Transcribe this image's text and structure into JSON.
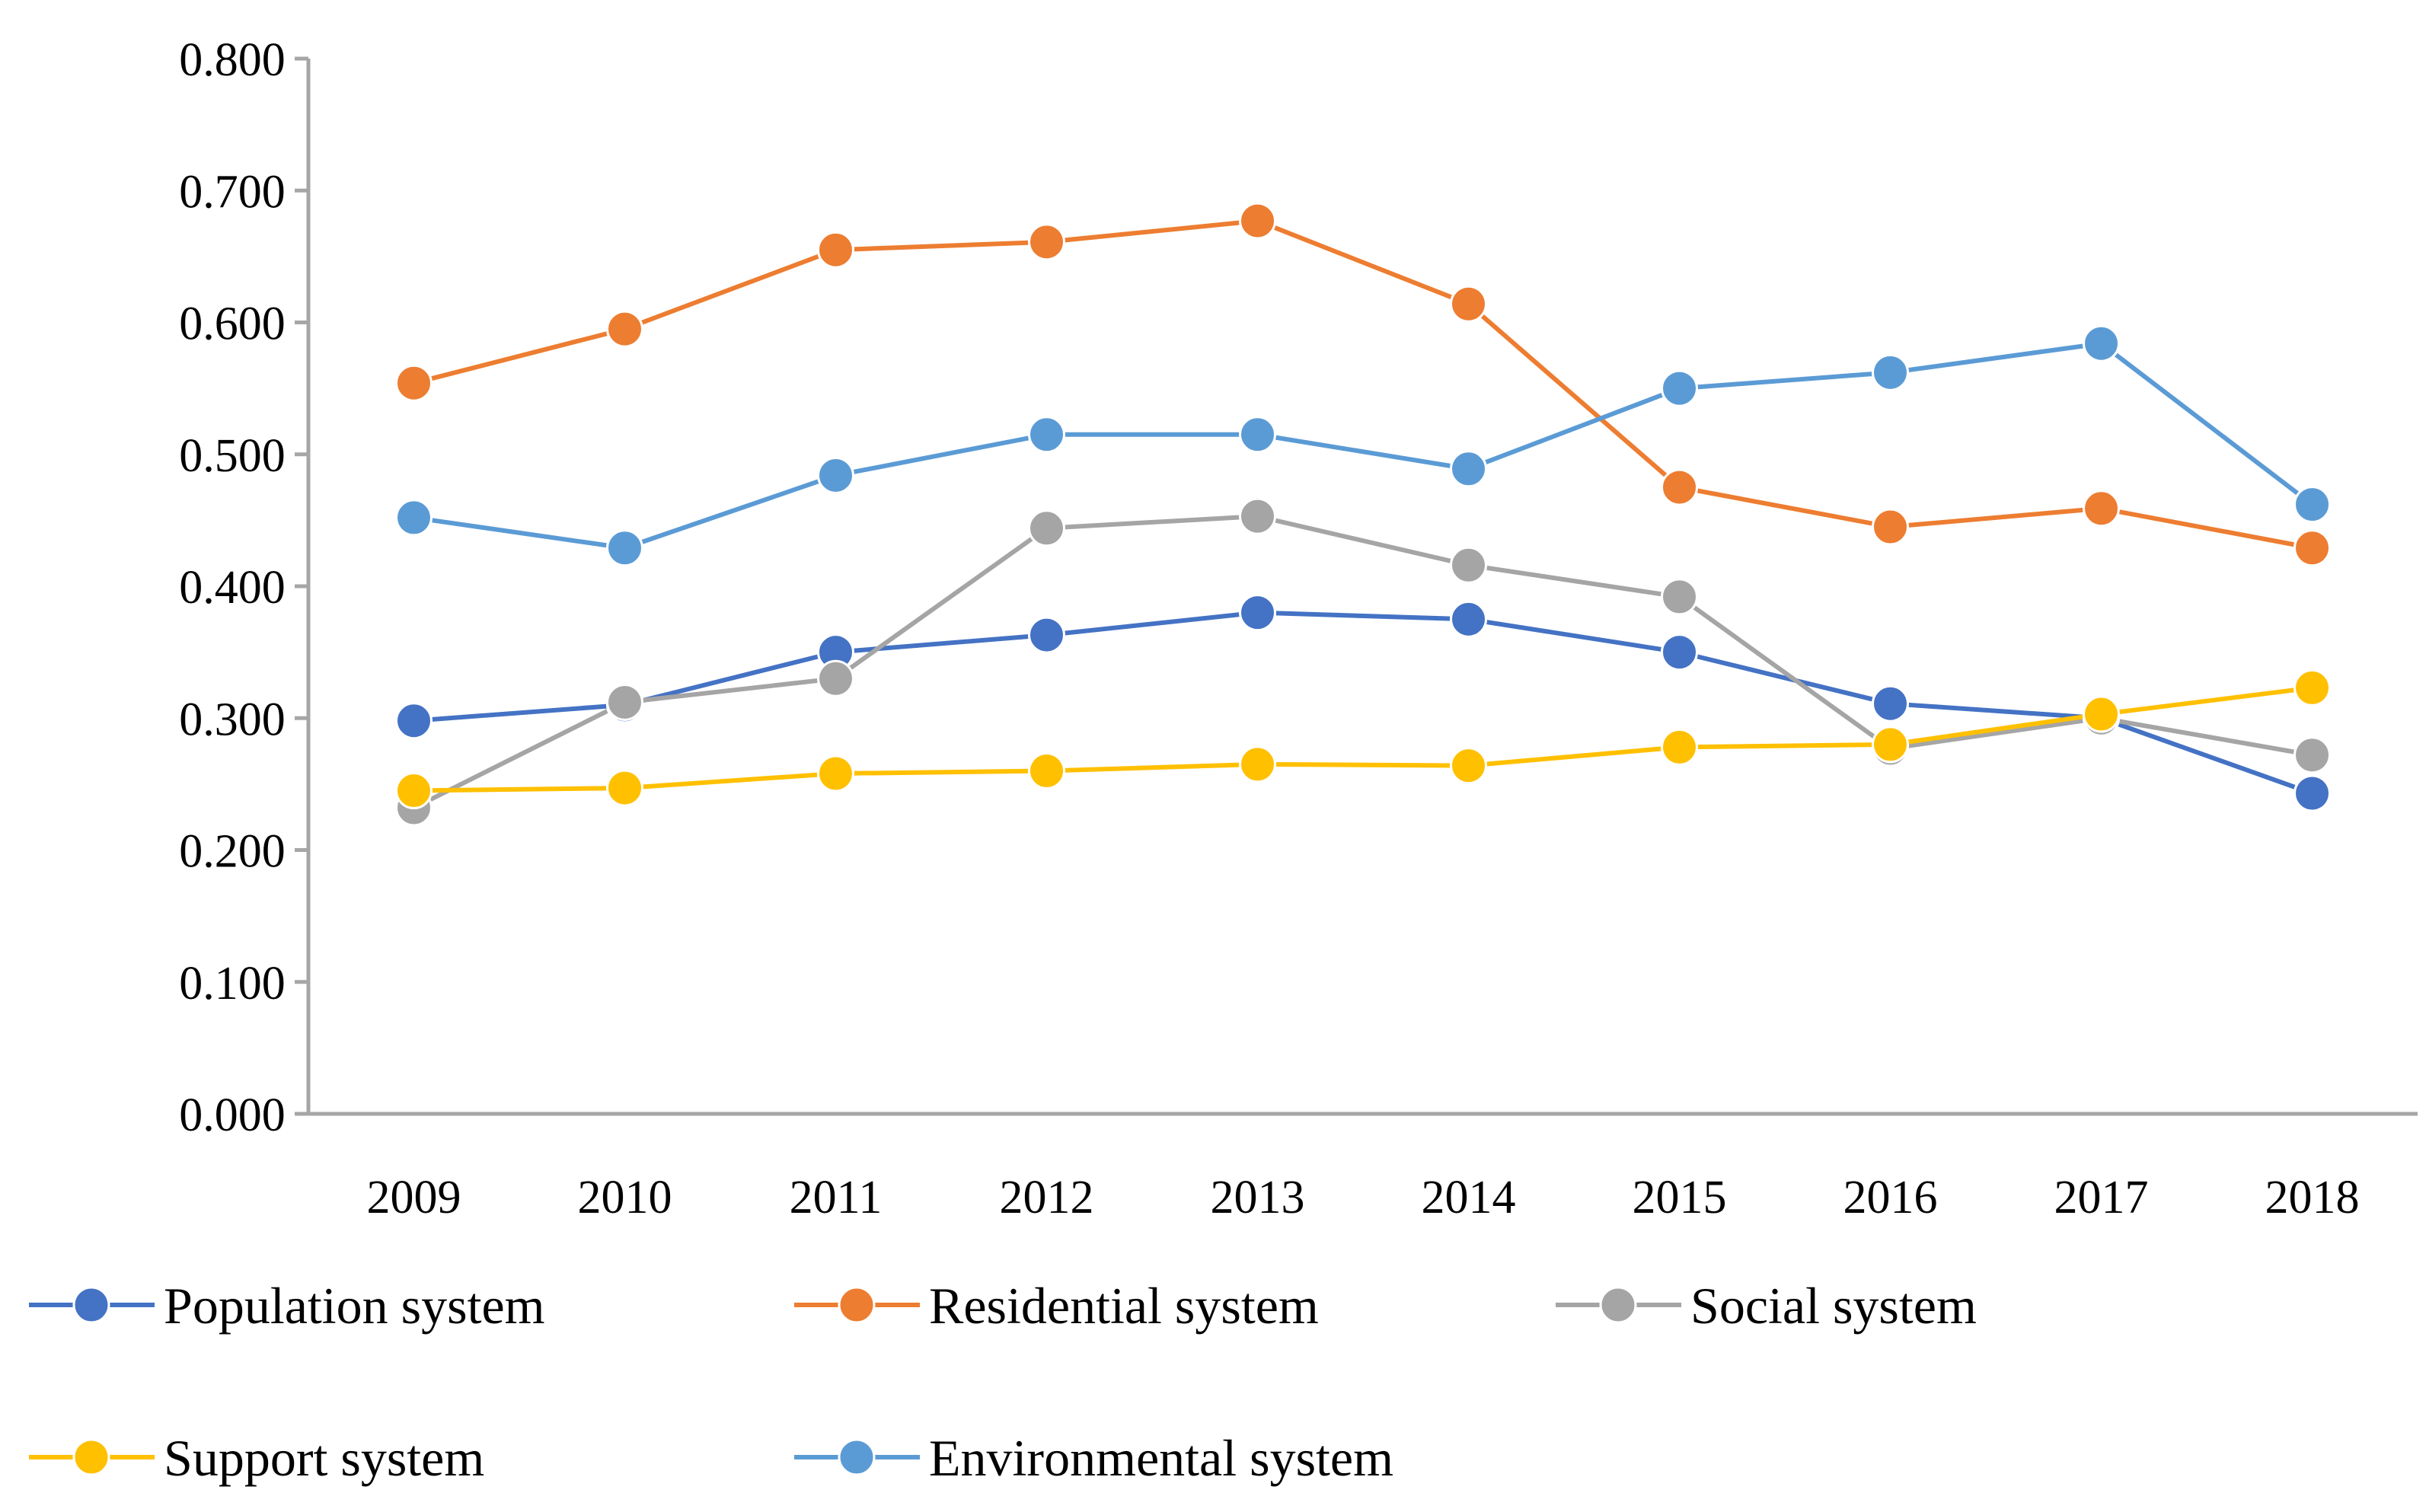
{
  "chart_data": {
    "type": "line",
    "title": "",
    "xlabel": "",
    "ylabel": "",
    "ylim": [
      0,
      0.8
    ],
    "y_ticks": [
      "0.000",
      "0.100",
      "0.200",
      "0.300",
      "0.400",
      "0.500",
      "0.600",
      "0.700",
      "0.800"
    ],
    "categories": [
      "2009",
      "2010",
      "2011",
      "2012",
      "2013",
      "2014",
      "2015",
      "2016",
      "2017",
      "2018"
    ],
    "grid": false,
    "legend_position": "bottom",
    "series": [
      {
        "name": "Population system",
        "color": "#4472C4",
        "values": [
          0.298,
          0.31,
          0.35,
          0.363,
          0.38,
          0.375,
          0.35,
          0.311,
          0.3,
          0.243
        ]
      },
      {
        "name": "Residential system",
        "color": "#ED7D31",
        "values": [
          0.554,
          0.595,
          0.655,
          0.661,
          0.677,
          0.614,
          0.475,
          0.445,
          0.459,
          0.429
        ]
      },
      {
        "name": "Social system",
        "color": "#A5A5A5",
        "values": [
          0.232,
          0.312,
          0.33,
          0.444,
          0.453,
          0.416,
          0.392,
          0.277,
          0.3,
          0.272
        ]
      },
      {
        "name": "Support system",
        "color": "#FFC000",
        "values": [
          0.245,
          0.247,
          0.258,
          0.26,
          0.265,
          0.264,
          0.278,
          0.28,
          0.303,
          0.323
        ]
      },
      {
        "name": "Environmental system",
        "color": "#5B9BD5",
        "values": [
          0.452,
          0.429,
          0.484,
          0.515,
          0.515,
          0.489,
          0.55,
          0.562,
          0.584,
          0.462
        ]
      }
    ]
  }
}
